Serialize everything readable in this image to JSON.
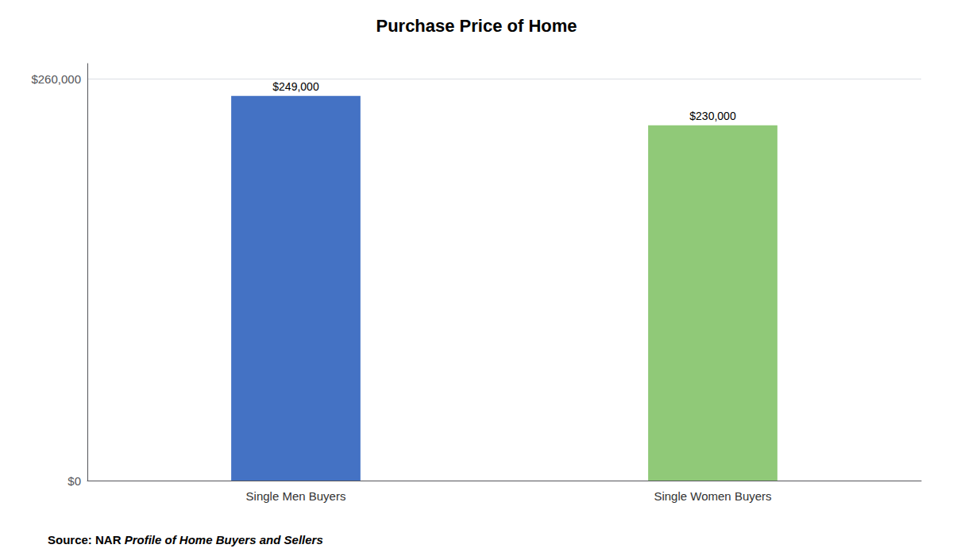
{
  "chart_data": {
    "type": "bar",
    "title": "Purchase Price of Home",
    "categories": [
      "Single Men Buyers",
      "Single Women Buyers"
    ],
    "values": [
      249000,
      230000
    ],
    "value_labels": [
      "$249,000",
      "$230,000"
    ],
    "data_labels": true,
    "colors": [
      "#4472C4",
      "#90C978"
    ],
    "ylim": [
      0,
      270000
    ],
    "yticks": [
      {
        "value": 0,
        "label": "$0"
      },
      {
        "value": 260000,
        "label": "$260,000"
      }
    ],
    "grid": true,
    "annotations": [
      "Source: NAR ",
      "Profile of Home Buyers and Sellers"
    ]
  }
}
